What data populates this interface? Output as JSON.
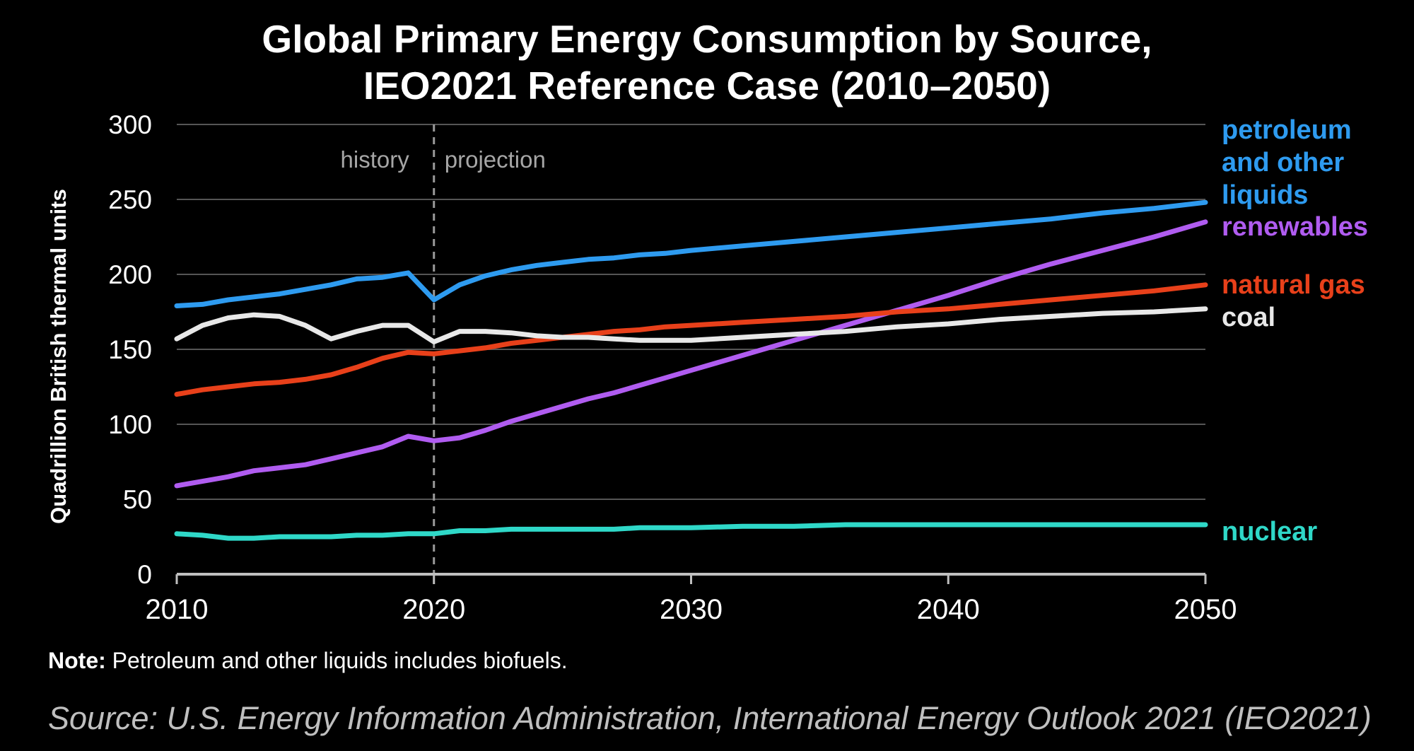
{
  "chart_data": {
    "type": "line",
    "title": [
      "Global Primary Energy Consumption by Source,",
      "IEO2021 Reference Case (2010–2050)"
    ],
    "ylabel": "Quadrillion British thermal units",
    "xlabel": "",
    "xlim": [
      2010,
      2050
    ],
    "ylim": [
      0,
      300
    ],
    "x_ticks": [
      "2010",
      "2020",
      "2030",
      "2040",
      "2050"
    ],
    "y_ticks": [
      "0",
      "50",
      "100",
      "150",
      "200",
      "250",
      "300"
    ],
    "grid": "horizontal",
    "divider": {
      "x": 2020,
      "left_label": "history",
      "right_label": "projection"
    },
    "series": [
      {
        "name": "petroleum and other liquids",
        "label_lines": [
          "petroleum",
          "and other",
          "liquids"
        ],
        "color": "#2e9bf0",
        "points": [
          [
            2010,
            179
          ],
          [
            2011,
            180
          ],
          [
            2012,
            183
          ],
          [
            2013,
            185
          ],
          [
            2014,
            187
          ],
          [
            2015,
            190
          ],
          [
            2016,
            193
          ],
          [
            2017,
            197
          ],
          [
            2018,
            198
          ],
          [
            2019,
            201
          ],
          [
            2020,
            183
          ],
          [
            2021,
            193
          ],
          [
            2022,
            199
          ],
          [
            2023,
            203
          ],
          [
            2024,
            206
          ],
          [
            2025,
            208
          ],
          [
            2026,
            210
          ],
          [
            2027,
            211
          ],
          [
            2028,
            213
          ],
          [
            2029,
            214
          ],
          [
            2030,
            216
          ],
          [
            2032,
            219
          ],
          [
            2034,
            222
          ],
          [
            2036,
            225
          ],
          [
            2038,
            228
          ],
          [
            2040,
            231
          ],
          [
            2042,
            234
          ],
          [
            2044,
            237
          ],
          [
            2046,
            241
          ],
          [
            2048,
            244
          ],
          [
            2050,
            248
          ]
        ]
      },
      {
        "name": "renewables",
        "label_lines": [
          "renewables"
        ],
        "color": "#b05cf0",
        "points": [
          [
            2010,
            59
          ],
          [
            2011,
            62
          ],
          [
            2012,
            65
          ],
          [
            2013,
            69
          ],
          [
            2014,
            71
          ],
          [
            2015,
            73
          ],
          [
            2016,
            77
          ],
          [
            2017,
            81
          ],
          [
            2018,
            85
          ],
          [
            2019,
            92
          ],
          [
            2020,
            89
          ],
          [
            2021,
            91
          ],
          [
            2022,
            96
          ],
          [
            2023,
            102
          ],
          [
            2024,
            107
          ],
          [
            2025,
            112
          ],
          [
            2026,
            117
          ],
          [
            2027,
            121
          ],
          [
            2028,
            126
          ],
          [
            2029,
            131
          ],
          [
            2030,
            136
          ],
          [
            2032,
            146
          ],
          [
            2034,
            156
          ],
          [
            2036,
            166
          ],
          [
            2038,
            176
          ],
          [
            2040,
            186
          ],
          [
            2042,
            197
          ],
          [
            2044,
            207
          ],
          [
            2046,
            216
          ],
          [
            2048,
            225
          ],
          [
            2050,
            235
          ]
        ]
      },
      {
        "name": "natural gas",
        "label_lines": [
          "natural gas"
        ],
        "color": "#e8401a",
        "points": [
          [
            2010,
            120
          ],
          [
            2011,
            123
          ],
          [
            2012,
            125
          ],
          [
            2013,
            127
          ],
          [
            2014,
            128
          ],
          [
            2015,
            130
          ],
          [
            2016,
            133
          ],
          [
            2017,
            138
          ],
          [
            2018,
            144
          ],
          [
            2019,
            148
          ],
          [
            2020,
            147
          ],
          [
            2021,
            149
          ],
          [
            2022,
            151
          ],
          [
            2023,
            154
          ],
          [
            2024,
            156
          ],
          [
            2025,
            158
          ],
          [
            2026,
            160
          ],
          [
            2027,
            162
          ],
          [
            2028,
            163
          ],
          [
            2029,
            165
          ],
          [
            2030,
            166
          ],
          [
            2032,
            168
          ],
          [
            2034,
            170
          ],
          [
            2036,
            172
          ],
          [
            2038,
            175
          ],
          [
            2040,
            177
          ],
          [
            2042,
            180
          ],
          [
            2044,
            183
          ],
          [
            2046,
            186
          ],
          [
            2048,
            189
          ],
          [
            2050,
            193
          ]
        ]
      },
      {
        "name": "coal",
        "label_lines": [
          "coal"
        ],
        "color": "#e8e8e8",
        "points": [
          [
            2010,
            157
          ],
          [
            2011,
            166
          ],
          [
            2012,
            171
          ],
          [
            2013,
            173
          ],
          [
            2014,
            172
          ],
          [
            2015,
            166
          ],
          [
            2016,
            157
          ],
          [
            2017,
            162
          ],
          [
            2018,
            166
          ],
          [
            2019,
            166
          ],
          [
            2020,
            155
          ],
          [
            2021,
            162
          ],
          [
            2022,
            162
          ],
          [
            2023,
            161
          ],
          [
            2024,
            159
          ],
          [
            2025,
            158
          ],
          [
            2026,
            158
          ],
          [
            2027,
            157
          ],
          [
            2028,
            156
          ],
          [
            2029,
            156
          ],
          [
            2030,
            156
          ],
          [
            2032,
            158
          ],
          [
            2034,
            160
          ],
          [
            2036,
            162
          ],
          [
            2038,
            165
          ],
          [
            2040,
            167
          ],
          [
            2042,
            170
          ],
          [
            2044,
            172
          ],
          [
            2046,
            174
          ],
          [
            2048,
            175
          ],
          [
            2050,
            177
          ]
        ]
      },
      {
        "name": "nuclear",
        "label_lines": [
          "nuclear"
        ],
        "color": "#2fd8c8",
        "points": [
          [
            2010,
            27
          ],
          [
            2011,
            26
          ],
          [
            2012,
            24
          ],
          [
            2013,
            24
          ],
          [
            2014,
            25
          ],
          [
            2015,
            25
          ],
          [
            2016,
            25
          ],
          [
            2017,
            26
          ],
          [
            2018,
            26
          ],
          [
            2019,
            27
          ],
          [
            2020,
            27
          ],
          [
            2021,
            29
          ],
          [
            2022,
            29
          ],
          [
            2023,
            30
          ],
          [
            2024,
            30
          ],
          [
            2025,
            30
          ],
          [
            2026,
            30
          ],
          [
            2027,
            30
          ],
          [
            2028,
            31
          ],
          [
            2029,
            31
          ],
          [
            2030,
            31
          ],
          [
            2032,
            32
          ],
          [
            2034,
            32
          ],
          [
            2036,
            33
          ],
          [
            2038,
            33
          ],
          [
            2040,
            33
          ],
          [
            2042,
            33
          ],
          [
            2044,
            33
          ],
          [
            2046,
            33
          ],
          [
            2048,
            33
          ],
          [
            2050,
            33
          ]
        ]
      }
    ]
  },
  "note": {
    "label": "Note:",
    "text": " Petroleum and other liquids includes biofuels."
  },
  "source": "Source: U.S. Energy Information Administration, International Energy Outlook 2021 (IEO2021)",
  "colors": {
    "background": "#000000",
    "gridline": "#555555",
    "axis": "#bfbfbf",
    "axis_text": "#ffffff",
    "divider": "#9a9a9a",
    "divider_text": "#a6a6a6"
  }
}
